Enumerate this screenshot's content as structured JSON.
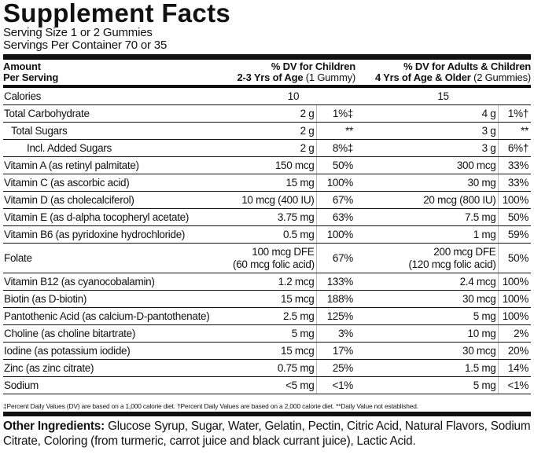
{
  "title": "Supplement Facts",
  "serving_size": "Serving Size 1 or 2 Gummies",
  "servings_per_container": "Servings Per Container 70 or 35",
  "header": {
    "amount": "Amount",
    "per_serving": "Per Serving",
    "children_dv": "% DV for Children",
    "children_age": "2-3 Yrs of Age",
    "children_qty": "(1 Gummy)",
    "adults_dv": "% DV for Adults & Children",
    "adults_age": "4 Yrs of Age & Older",
    "adults_qty": "(2 Gummies)"
  },
  "table": {
    "rows": [
      [
        "Calories",
        "10",
        "15"
      ],
      [
        "Total Carbohydrate",
        "2 g",
        "1%‡",
        "4 g",
        "1%†"
      ],
      [
        "Total Sugars",
        "2 g",
        "**",
        "3 g",
        "**"
      ],
      [
        "Incl. Added Sugars",
        "2 g",
        "8%‡",
        "3 g",
        "6%†"
      ],
      [
        "Vitamin A (as retinyl palmitate)",
        "150 mcg",
        "50%",
        "300 mcg",
        "33%"
      ],
      [
        "Vitamin C (as ascorbic acid)",
        "15 mg",
        "100%",
        "30 mg",
        "33%"
      ],
      [
        "Vitamin D (as cholecalciferol)",
        "10 mcg (400 IU)",
        "67%",
        "20 mcg (800 IU)",
        "100%"
      ],
      [
        "Vitamin E (as d-alpha tocopheryl acetate)",
        "3.75 mg",
        "63%",
        "7.5 mg",
        "50%"
      ],
      [
        "Vitamin B6 (as pyridoxine hydrochloride)",
        "0.5 mg",
        "100%",
        "1 mg",
        "59%"
      ],
      [
        "Folate",
        [
          "100 mcg DFE",
          "(60 mcg folic acid)"
        ],
        "67%",
        [
          "200 mcg DFE",
          "(120 mcg folic acid)"
        ],
        "50%"
      ],
      [
        "Vitamin B12 (as cyanocobalamin)",
        "1.2 mcg",
        "133%",
        "2.4 mcg",
        "100%"
      ],
      [
        "Biotin (as D-biotin)",
        "15 mcg",
        "188%",
        "30 mcg",
        "100%"
      ],
      [
        "Pantothenic Acid (as calcium-D-pantothenate)",
        "2.5 mg",
        "125%",
        "5 mg",
        "100%"
      ],
      [
        "Choline (as choline bitartrate)",
        "5 mg",
        "3%",
        "10 mg",
        "2%"
      ],
      [
        "Iodine (as potassium iodide)",
        "15 mcg",
        "17%",
        "30 mcg",
        "20%"
      ],
      [
        "Zinc (as zinc citrate)",
        "0.75 mg",
        "25%",
        "1.5 mg",
        "14%"
      ],
      [
        "Sodium",
        "<5 mg",
        "<1%",
        "5 mg",
        "<1%"
      ]
    ]
  },
  "footnote": "‡Percent Daily Values (DV) are based on a 1,000 calorie diet. †Percent Daily Values are based on a 2,000 calorie diet. **Daily Value not established.",
  "other_ingredients": {
    "label": "Other Ingredients:",
    "text": "Glucose Syrup, Sugar, Water, Gelatin, Pectin, Citric Acid, Natural Flavors, Sodium Citrate, Coloring (from turmeric, carrot juice and black currant juice), Lactic Acid."
  }
}
